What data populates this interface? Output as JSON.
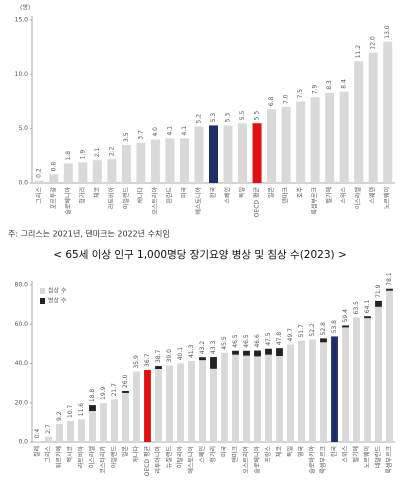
{
  "chart_data": [
    {
      "type": "bar",
      "unit": "(명)",
      "categories": [
        "그리스",
        "포르투갈",
        "슬로베니아",
        "헝가리",
        "체코",
        "라트비아",
        "아일랜드",
        "캐나다",
        "오스트리아",
        "핀란드",
        "미국",
        "에스토니아",
        "한국",
        "스페인",
        "독일",
        "OECD 평균",
        "일본",
        "덴마크",
        "호주",
        "룩셈부르크",
        "벨기에",
        "스위스",
        "이스라엘",
        "스웨덴",
        "노르웨이"
      ],
      "values": [
        0.2,
        0.8,
        1.8,
        1.9,
        2.1,
        2.2,
        3.5,
        3.7,
        4.0,
        4.1,
        4.1,
        5.2,
        5.3,
        5.3,
        5.5,
        5.5,
        6.8,
        7.0,
        7.5,
        7.9,
        8.3,
        8.4,
        11.2,
        12.0,
        13.0
      ],
      "value_labels": [
        "0.2",
        "0.8",
        "1.8",
        "1.9",
        "2.1",
        "2.2",
        "3.5",
        "3.7",
        "4.0",
        "4.1",
        "4.1",
        "5.2",
        "5.3",
        "5.3",
        "5.5",
        "5.5",
        "6.8",
        "7.0",
        "7.5",
        "7.9",
        "8.3",
        "8.4",
        "11.2",
        "12.0",
        "13.0"
      ],
      "colors": [
        "#d9d9d9",
        "#d9d9d9",
        "#d9d9d9",
        "#d9d9d9",
        "#d9d9d9",
        "#d9d9d9",
        "#d9d9d9",
        "#d9d9d9",
        "#d9d9d9",
        "#d9d9d9",
        "#d9d9d9",
        "#d9d9d9",
        "#1f2d6b",
        "#d9d9d9",
        "#d9d9d9",
        "#e01010",
        "#d9d9d9",
        "#d9d9d9",
        "#d9d9d9",
        "#d9d9d9",
        "#d9d9d9",
        "#d9d9d9",
        "#d9d9d9",
        "#d9d9d9",
        "#d9d9d9"
      ],
      "ylim": [
        0,
        15
      ],
      "yticks": [
        {
          "value": 0,
          "label": "0.0"
        },
        {
          "value": 5,
          "label": "5.0"
        },
        {
          "value": 10,
          "label": "10.0"
        },
        {
          "value": 15,
          "label": "15.0"
        }
      ],
      "note": "주: 그리스는 2021년, 덴마크는 2022년 수치임"
    },
    {
      "type": "stacked_bar",
      "title": "< 65세 이상 인구 1,000명당 장기요양 병상 및 침상 수(2023) >",
      "categories": [
        "칠레",
        "그리스",
        "튀르키예",
        "멕시코",
        "라트비아",
        "이스라엘",
        "코스타리카",
        "아일랜드",
        "일본",
        "캐나다",
        "OECD 평균",
        "리투아니아",
        "뉴질랜드",
        "이탈리아",
        "에스토니아",
        "스페인",
        "헝가리",
        "미국",
        "덴마크",
        "오스트리아",
        "슬로베니아",
        "프랑스",
        "체코",
        "독일",
        "영국",
        "슬로바키아",
        "룩셈부르크",
        "한국",
        "스위스",
        "벨기에",
        "노르웨이",
        "네덜란드",
        "룩셈부르크"
      ],
      "series": [
        {
          "name": "침상 수",
          "color": "#d9d9d9",
          "values": [
            0.4,
            2.7,
            9.2,
            10.7,
            11.6,
            15.8,
            19.9,
            21.7,
            25.0,
            35.9,
            36.7,
            37.2,
            39.0,
            40.1,
            41.3,
            41.7,
            37.3,
            45.5,
            44.5,
            44.0,
            43.6,
            44.5,
            43.8,
            49.7,
            51.7,
            52.2,
            50.8,
            53.8,
            58.4,
            63.5,
            63.1,
            68.9,
            77.1
          ]
        },
        {
          "name": "병상 수",
          "color": "#222222",
          "values": [
            0,
            0,
            0,
            0,
            0,
            3.0,
            0,
            0,
            1.0,
            0,
            0,
            1.5,
            0,
            0,
            0,
            1.5,
            6.0,
            0,
            2.0,
            2.5,
            3.0,
            3.0,
            4.0,
            0,
            0,
            0,
            2.0,
            0,
            1.0,
            0,
            1.0,
            3.0,
            1.0
          ]
        }
      ],
      "colors": [
        "#d9d9d9",
        "#d9d9d9",
        "#d9d9d9",
        "#d9d9d9",
        "#d9d9d9",
        "#d9d9d9",
        "#d9d9d9",
        "#d9d9d9",
        "#d9d9d9",
        "#d9d9d9",
        "#e01010",
        "#d9d9d9",
        "#d9d9d9",
        "#d9d9d9",
        "#d9d9d9",
        "#d9d9d9",
        "#d9d9d9",
        "#d9d9d9",
        "#d9d9d9",
        "#d9d9d9",
        "#d9d9d9",
        "#d9d9d9",
        "#d9d9d9",
        "#d9d9d9",
        "#d9d9d9",
        "#d9d9d9",
        "#d9d9d9",
        "#1f2d6b",
        "#d9d9d9",
        "#d9d9d9",
        "#d9d9d9",
        "#d9d9d9",
        "#d9d9d9"
      ],
      "total_labels": [
        "0.4",
        "2.7",
        "9.2",
        "10.7",
        "11.6",
        "18.8",
        "19.9",
        "21.7",
        "26.0",
        "35.9",
        "36.7",
        "38.7",
        "39.0",
        "40.1",
        "41.3",
        "43.2",
        "43.3",
        "45.5",
        "46.5",
        "46.5",
        "46.6",
        "47.5",
        "47.8",
        "49.7",
        "51.7",
        "52.2",
        "52.8",
        "53.8",
        "59.4",
        "63.5",
        "64.1",
        "71.9",
        "78.1"
      ],
      "ylim": [
        0,
        80
      ],
      "yticks": [
        {
          "value": 0,
          "label": "0.0"
        },
        {
          "value": 20,
          "label": "20.0"
        },
        {
          "value": 40,
          "label": "40.0"
        },
        {
          "value": 60,
          "label": "60.0"
        },
        {
          "value": 80,
          "label": "80.0"
        }
      ]
    }
  ]
}
